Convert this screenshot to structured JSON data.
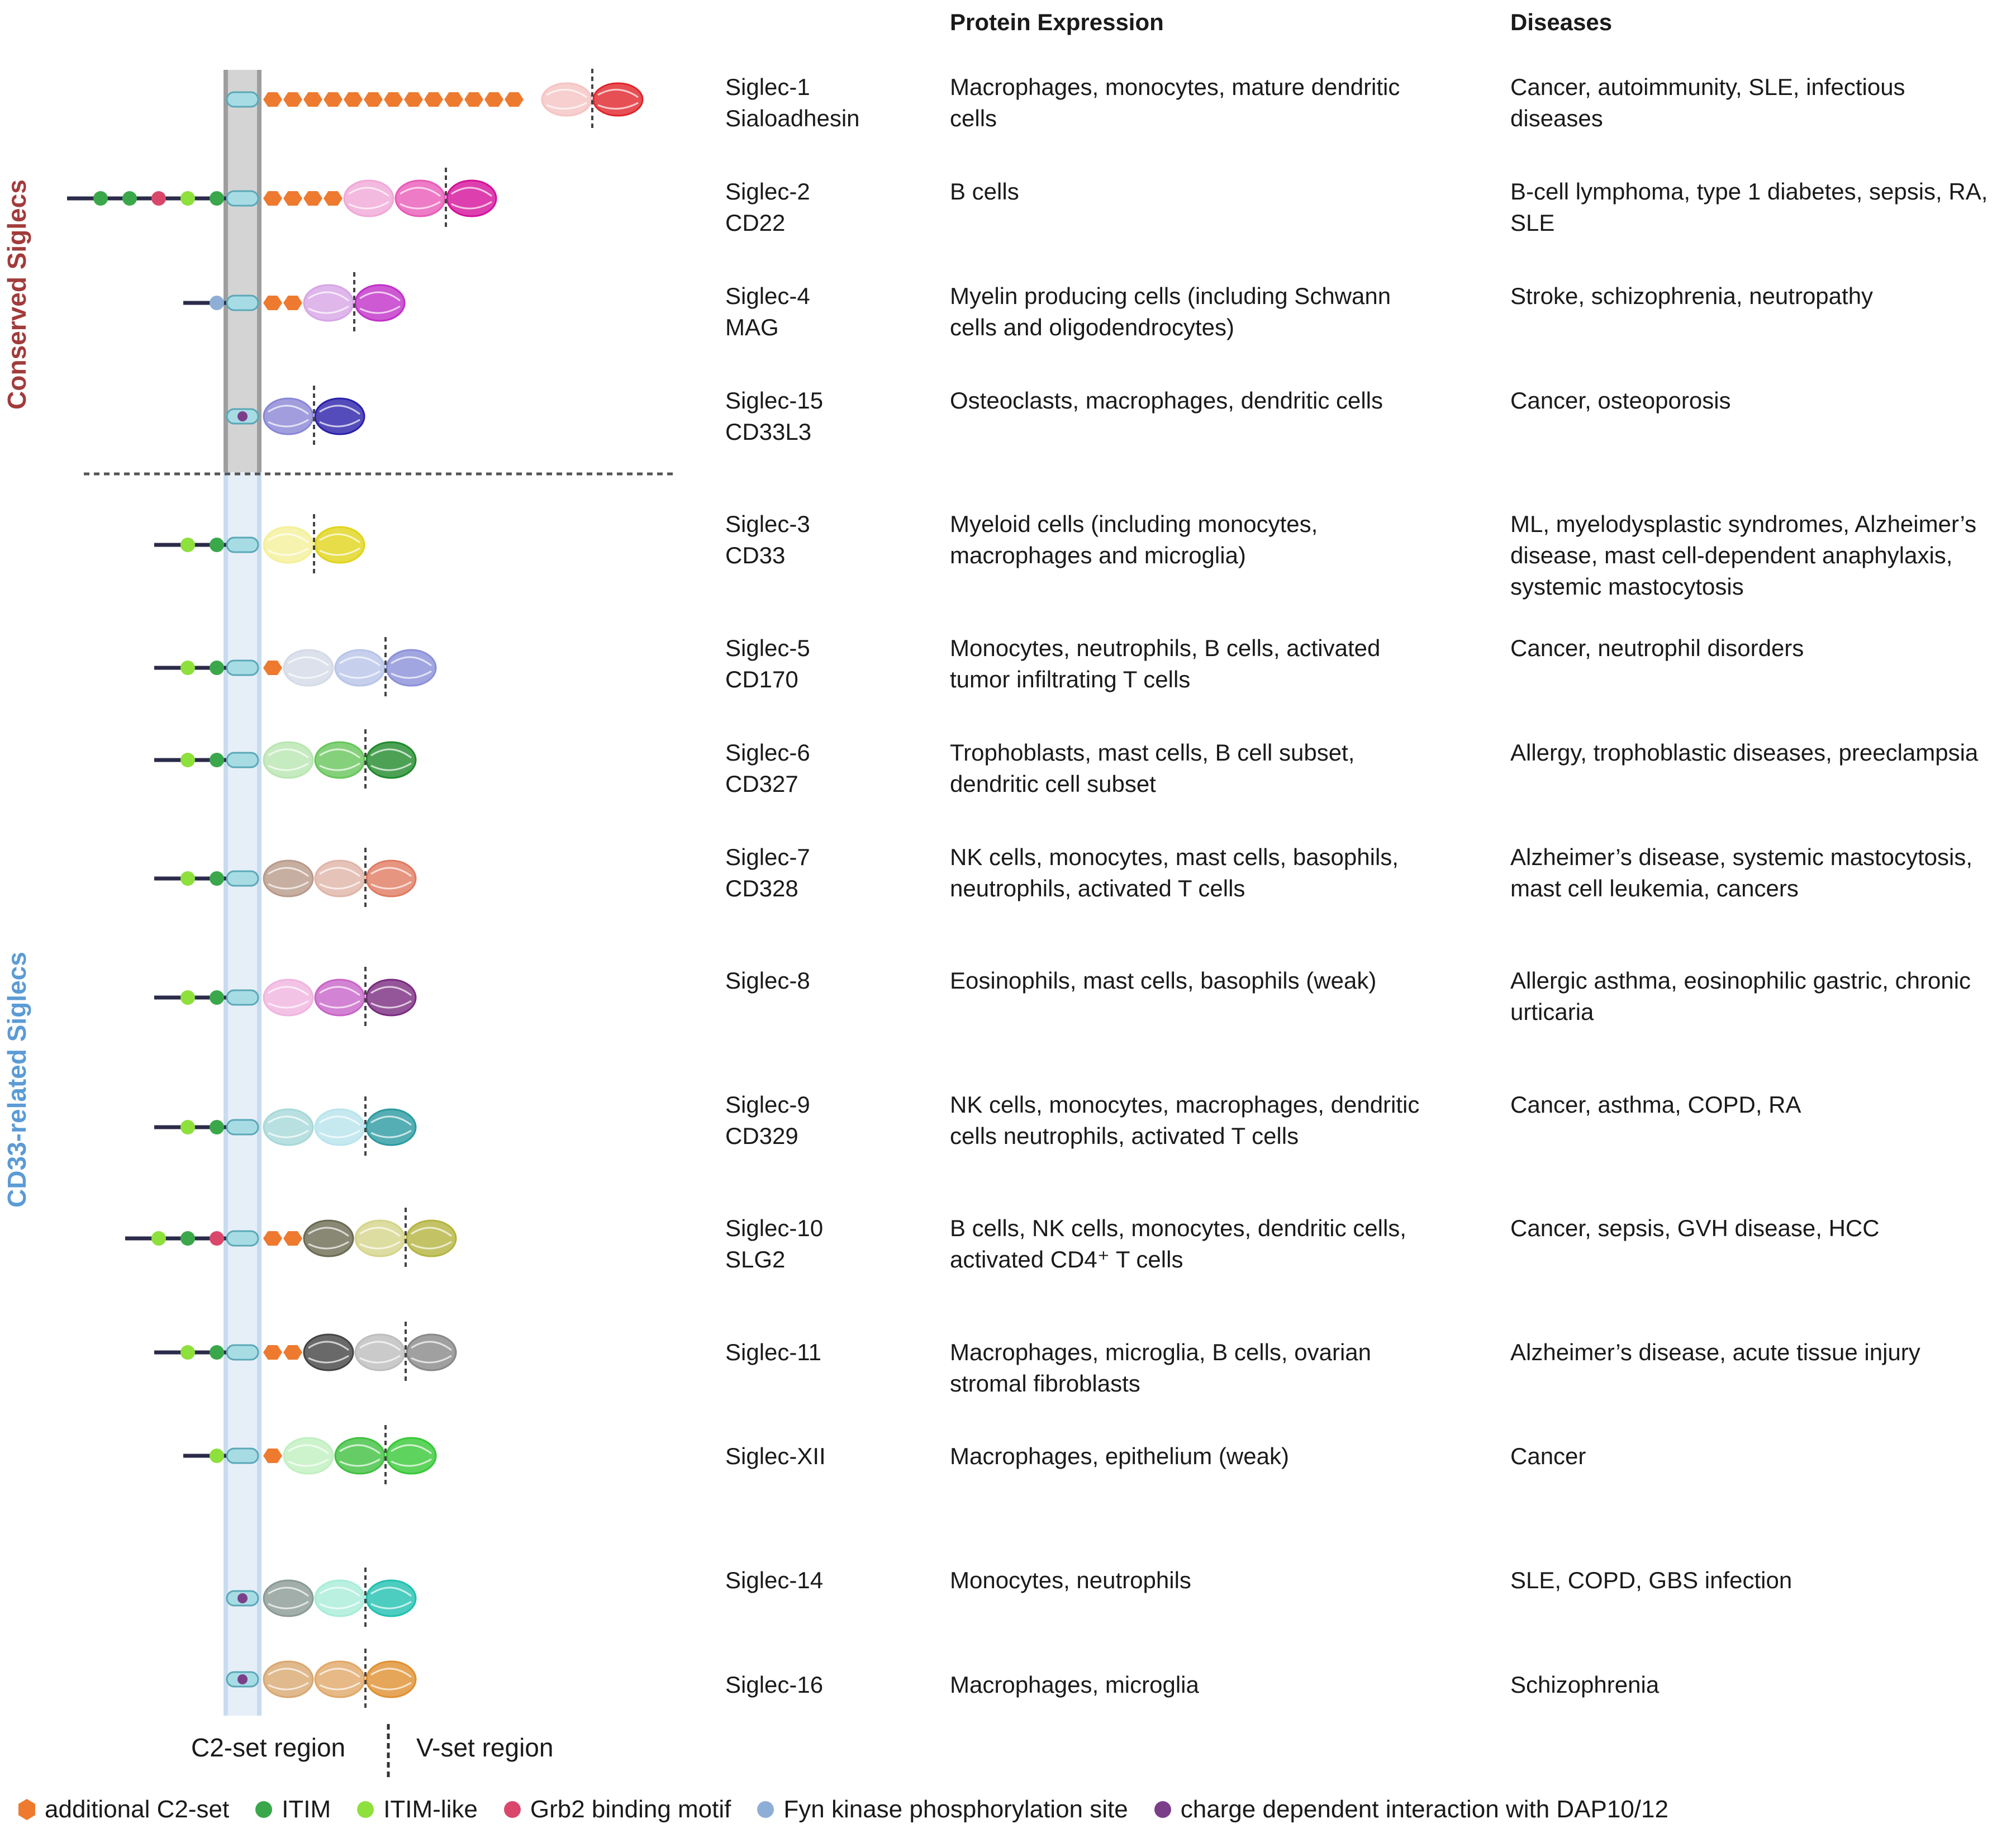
{
  "headers": {
    "expression": "Protein Expression",
    "diseases": "Diseases"
  },
  "groups": {
    "conserved": "Conserved Siglecs",
    "cd33": "CD33-related Siglecs"
  },
  "regions": {
    "c2": "C2-set region",
    "v": "V-set region"
  },
  "colors": {
    "orange": "#ee7a2f",
    "itim": "#3aa84a",
    "itim_like": "#8ee03c",
    "grb2": "#d9486b",
    "fyn": "#8eaed6",
    "dap": "#7b3f8a",
    "conserved_text": "#a23b3b",
    "cd33_text": "#5b9bd5",
    "membrane_dark": "#9e9e9e",
    "membrane_light": "#c8dcef"
  },
  "rows": [
    {
      "name": "Siglec-1",
      "alias": "Sialoadhesin",
      "expression": "Macrophages, monocytes, mature dendritic\ncells",
      "diseases": "Cancer, autoimmunity, SLE, infectious\ndiseases"
    },
    {
      "name": "Siglec-2",
      "alias": "CD22",
      "expression": "B cells",
      "diseases": "B-cell lymphoma, type 1 diabetes, sepsis, RA,\nSLE"
    },
    {
      "name": "Siglec-4",
      "alias": "MAG",
      "expression": "Myelin producing cells (including Schwann\ncells and oligodendrocytes)",
      "diseases": "Stroke, schizophrenia, neutropathy"
    },
    {
      "name": "Siglec-15",
      "alias": "CD33L3",
      "expression": "Osteoclasts, macrophages, dendritic cells",
      "diseases": "Cancer, osteoporosis"
    },
    {
      "name": "Siglec-3",
      "alias": "CD33",
      "expression": "Myeloid cells (including monocytes,\nmacrophages and microglia)",
      "diseases": "ML, myelodysplastic syndromes, Alzheimer’s\ndisease, mast cell-dependent anaphylaxis,\nsystemic mastocytosis"
    },
    {
      "name": "Siglec-5",
      "alias": "CD170",
      "expression": "Monocytes, neutrophils, B cells, activated\ntumor infiltrating T cells",
      "diseases": "Cancer, neutrophil disorders"
    },
    {
      "name": "Siglec-6",
      "alias": "CD327",
      "expression": "Trophoblasts, mast cells, B cell subset,\ndendritic cell subset",
      "diseases": "Allergy, trophoblastic diseases, preeclampsia"
    },
    {
      "name": "Siglec-7",
      "alias": "CD328",
      "expression": "NK cells, monocytes, mast cells, basophils,\nneutrophils, activated T cells",
      "diseases": "Alzheimer’s disease, systemic mastocytosis,\nmast cell leukemia, cancers"
    },
    {
      "name": "Siglec-8",
      "alias": "",
      "expression": "Eosinophils, mast cells, basophils (weak)",
      "diseases": "Allergic asthma, eosinophilic gastric, chronic\nurticaria"
    },
    {
      "name": "Siglec-9",
      "alias": "CD329",
      "expression": "NK cells, monocytes, macrophages, dendritic\ncells neutrophils, activated T cells",
      "diseases": "Cancer, asthma, COPD, RA"
    },
    {
      "name": "Siglec-10",
      "alias": "SLG2",
      "expression": "B cells, NK cells, monocytes, dendritic cells,\nactivated CD4⁺ T cells",
      "diseases": "Cancer, sepsis, GVH disease, HCC"
    },
    {
      "name": "Siglec-11",
      "alias": "",
      "expression": "Macrophages, microglia, B cells, ovarian\nstromal fibroblasts",
      "diseases": "Alzheimer’s disease, acute tissue injury"
    },
    {
      "name": "Siglec-XII",
      "alias": "",
      "expression": "Macrophages, epithelium (weak)",
      "diseases": "Cancer"
    },
    {
      "name": "Siglec-14",
      "alias": "",
      "expression": "Monocytes, neutrophils",
      "diseases": "SLE, COPD, GBS infection"
    },
    {
      "name": "Siglec-16",
      "alias": "",
      "expression": "Macrophages, microglia",
      "diseases": "Schizophrenia"
    }
  ],
  "legend": [
    {
      "label": "additional C2-set",
      "icon": "orange-hexagon-icon",
      "color": "#ee7a2f"
    },
    {
      "label": "ITIM",
      "icon": "dark-green-dot-icon",
      "color": "#3aa84a"
    },
    {
      "label": "ITIM-like",
      "icon": "light-green-dot-icon",
      "color": "#8ee03c"
    },
    {
      "label": "Grb2 binding motif",
      "icon": "pink-dot-icon",
      "color": "#d9486b"
    },
    {
      "label": "Fyn kinase phosphorylation site",
      "icon": "blue-dot-icon",
      "color": "#8eaed6"
    },
    {
      "label": "charge dependent interaction with DAP10/12",
      "icon": "purple-dot-icon",
      "color": "#7b3f8a"
    }
  ],
  "proteins": [
    {
      "motifs": [],
      "c2": 13,
      "domains": [
        "#f5c3c3",
        "#e0242a"
      ],
      "dap": false
    },
    {
      "motifs": [
        "itim",
        "itim",
        "grb2",
        "itim_like",
        "itim"
      ],
      "c2": 4,
      "domains": [
        "#f0a8d6",
        "#e85ab8",
        "#d4109a"
      ],
      "dap": false
    },
    {
      "motifs": [
        "fyn"
      ],
      "c2": 2,
      "domains": [
        "#d7a5e6",
        "#c030c8"
      ],
      "dap": false
    },
    {
      "motifs": [],
      "c2": 0,
      "domains": [
        "#8a86d6",
        "#2a1faa"
      ],
      "dap": true
    },
    {
      "motifs": [
        "itim_like",
        "itim"
      ],
      "c2": 0,
      "domains": [
        "#f4f09a",
        "#e0d41a"
      ],
      "dap": false
    },
    {
      "motifs": [
        "itim_like",
        "itim"
      ],
      "c2": 1,
      "domains": [
        "#d4dae6",
        "#b8c4e8",
        "#8a90d8"
      ],
      "dap": false
    },
    {
      "motifs": [
        "itim_like",
        "itim"
      ],
      "c2": 0,
      "domains": [
        "#b8e6b0",
        "#66c65a",
        "#1f8a2a"
      ],
      "dap": false
    },
    {
      "motifs": [
        "itim_like",
        "itim"
      ],
      "c2": 0,
      "domains": [
        "#b89a8a",
        "#e0b4a8",
        "#e07a60"
      ],
      "dap": false
    },
    {
      "motifs": [
        "itim_like",
        "itim"
      ],
      "c2": 0,
      "domains": [
        "#f0b4e0",
        "#c864c8",
        "#7a2a80"
      ],
      "dap": false
    },
    {
      "motifs": [
        "itim_like",
        "itim"
      ],
      "c2": 0,
      "domains": [
        "#a8d8d8",
        "#b8e4ec",
        "#2a9aa0"
      ],
      "dap": false
    },
    {
      "motifs": [
        "itim_like",
        "itim",
        "grb2"
      ],
      "c2": 2,
      "domains": [
        "#6a6a52",
        "#d4d48a",
        "#b4b440"
      ],
      "dap": false
    },
    {
      "motifs": [
        "itim_like",
        "itim"
      ],
      "c2": 2,
      "domains": [
        "#444444",
        "#bdbdbd",
        "#888888"
      ],
      "dap": false
    },
    {
      "motifs": [
        "itim_like"
      ],
      "c2": 1,
      "domains": [
        "#c0f0c0",
        "#40c040",
        "#36c836"
      ],
      "dap": false
    },
    {
      "motifs": [],
      "c2": 0,
      "domains": [
        "#8a9a94",
        "#a8ecd8",
        "#20c0b0"
      ],
      "dap": true
    },
    {
      "motifs": [],
      "c2": 0,
      "domains": [
        "#d8a870",
        "#e0a868",
        "#e09030"
      ],
      "dap": true
    }
  ]
}
